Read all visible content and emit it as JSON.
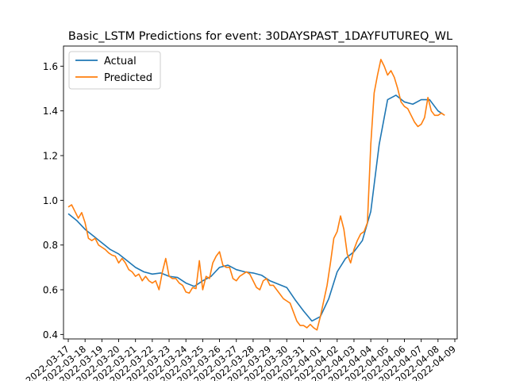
{
  "chart_data": {
    "type": "line",
    "title": "Basic_LSTM Predictions for event: 30DAYSPAST_1DAYFUTUREQ_WL",
    "xlabel": "",
    "ylabel": "",
    "ylim": [
      0.38,
      1.69
    ],
    "yticks": [
      0.4,
      0.6,
      0.8,
      1.0,
      1.2,
      1.4,
      1.6
    ],
    "xlim": [
      0,
      23
    ],
    "xticks": [
      {
        "v": 0,
        "label": "2022-03-17"
      },
      {
        "v": 1,
        "label": "2022-03-18"
      },
      {
        "v": 2,
        "label": "2022-03-19"
      },
      {
        "v": 3,
        "label": "2022-03-20"
      },
      {
        "v": 4,
        "label": "2022-03-21"
      },
      {
        "v": 5,
        "label": "2022-03-22"
      },
      {
        "v": 6,
        "label": "2022-03-23"
      },
      {
        "v": 7,
        "label": "2022-03-24"
      },
      {
        "v": 8,
        "label": "2022-03-25"
      },
      {
        "v": 9,
        "label": "2022-03-26"
      },
      {
        "v": 10,
        "label": "2022-03-27"
      },
      {
        "v": 11,
        "label": "2022-03-28"
      },
      {
        "v": 12,
        "label": "2022-03-29"
      },
      {
        "v": 13,
        "label": "2022-03-30"
      },
      {
        "v": 14,
        "label": "2022-03-31"
      },
      {
        "v": 15,
        "label": "2022-04-01"
      },
      {
        "v": 16,
        "label": "2022-04-02"
      },
      {
        "v": 17,
        "label": "2022-04-03"
      },
      {
        "v": 18,
        "label": "2022-04-04"
      },
      {
        "v": 19,
        "label": "2022-04-05"
      },
      {
        "v": 20,
        "label": "2022-04-06"
      },
      {
        "v": 21,
        "label": "2022-04-07"
      },
      {
        "v": 22,
        "label": "2022-04-08"
      },
      {
        "v": 23,
        "label": "2022-04-09"
      }
    ],
    "legend": "upper-left",
    "grid": false,
    "series": [
      {
        "name": "Actual",
        "color": "#1f77b4",
        "x": [
          0,
          0.5,
          1,
          1.5,
          2,
          2.5,
          3,
          3.5,
          4,
          4.5,
          5,
          5.5,
          6,
          6.5,
          7,
          7.5,
          8,
          8.5,
          9,
          9.5,
          10,
          10.5,
          11,
          11.5,
          12,
          12.5,
          13,
          13.5,
          14,
          14.5,
          15,
          15.5,
          16,
          16.5,
          17,
          17.5,
          18,
          18.5,
          19,
          19.5,
          20,
          20.5,
          21,
          21.5,
          22,
          22.3
        ],
        "y": [
          0.94,
          0.91,
          0.87,
          0.84,
          0.81,
          0.78,
          0.76,
          0.73,
          0.7,
          0.68,
          0.67,
          0.675,
          0.66,
          0.655,
          0.63,
          0.615,
          0.64,
          0.66,
          0.7,
          0.71,
          0.69,
          0.68,
          0.675,
          0.665,
          0.64,
          0.625,
          0.61,
          0.555,
          0.505,
          0.46,
          0.48,
          0.56,
          0.68,
          0.74,
          0.77,
          0.82,
          0.95,
          1.25,
          1.45,
          1.47,
          1.44,
          1.43,
          1.45,
          1.45,
          1.4,
          1.385
        ]
      },
      {
        "name": "Predicted",
        "color": "#ff7f0e",
        "x": [
          0,
          0.2,
          0.4,
          0.6,
          0.8,
          1.0,
          1.2,
          1.4,
          1.6,
          1.8,
          2.0,
          2.2,
          2.4,
          2.6,
          2.8,
          3.0,
          3.2,
          3.4,
          3.6,
          3.8,
          4.0,
          4.2,
          4.4,
          4.6,
          4.8,
          5.0,
          5.2,
          5.4,
          5.6,
          5.8,
          6.0,
          6.2,
          6.4,
          6.6,
          6.8,
          7.0,
          7.2,
          7.4,
          7.6,
          7.8,
          8.0,
          8.2,
          8.4,
          8.6,
          8.8,
          9.0,
          9.2,
          9.4,
          9.6,
          9.8,
          10.0,
          10.2,
          10.4,
          10.6,
          10.8,
          11.0,
          11.2,
          11.4,
          11.6,
          11.8,
          12.0,
          12.2,
          12.4,
          12.6,
          12.8,
          13.0,
          13.2,
          13.4,
          13.6,
          13.8,
          14.0,
          14.2,
          14.4,
          14.6,
          14.8,
          15.0,
          15.2,
          15.4,
          15.6,
          15.8,
          16.0,
          16.2,
          16.4,
          16.6,
          16.8,
          17.0,
          17.2,
          17.4,
          17.6,
          17.8,
          18.0,
          18.2,
          18.4,
          18.6,
          18.8,
          19.0,
          19.2,
          19.4,
          19.6,
          19.8,
          20.0,
          20.2,
          20.4,
          20.6,
          20.8,
          21.0,
          21.2,
          21.4,
          21.6,
          21.8,
          22.0,
          22.2,
          22.4
        ],
        "y": [
          0.97,
          0.98,
          0.95,
          0.92,
          0.945,
          0.9,
          0.83,
          0.82,
          0.83,
          0.8,
          0.79,
          0.78,
          0.765,
          0.755,
          0.75,
          0.72,
          0.74,
          0.72,
          0.69,
          0.68,
          0.66,
          0.67,
          0.64,
          0.66,
          0.64,
          0.63,
          0.64,
          0.6,
          0.68,
          0.74,
          0.66,
          0.65,
          0.65,
          0.63,
          0.62,
          0.59,
          0.585,
          0.61,
          0.605,
          0.73,
          0.6,
          0.66,
          0.65,
          0.72,
          0.75,
          0.77,
          0.71,
          0.7,
          0.7,
          0.65,
          0.64,
          0.66,
          0.67,
          0.68,
          0.67,
          0.64,
          0.61,
          0.6,
          0.64,
          0.65,
          0.62,
          0.62,
          0.6,
          0.58,
          0.56,
          0.55,
          0.54,
          0.5,
          0.46,
          0.44,
          0.44,
          0.43,
          0.445,
          0.43,
          0.42,
          0.48,
          0.55,
          0.62,
          0.72,
          0.83,
          0.86,
          0.93,
          0.87,
          0.76,
          0.72,
          0.78,
          0.82,
          0.85,
          0.86,
          0.9,
          1.25,
          1.48,
          1.56,
          1.63,
          1.6,
          1.56,
          1.58,
          1.55,
          1.5,
          1.44,
          1.42,
          1.41,
          1.38,
          1.35,
          1.33,
          1.34,
          1.37,
          1.46,
          1.4,
          1.38,
          1.38,
          1.39,
          1.38
        ]
      }
    ]
  }
}
